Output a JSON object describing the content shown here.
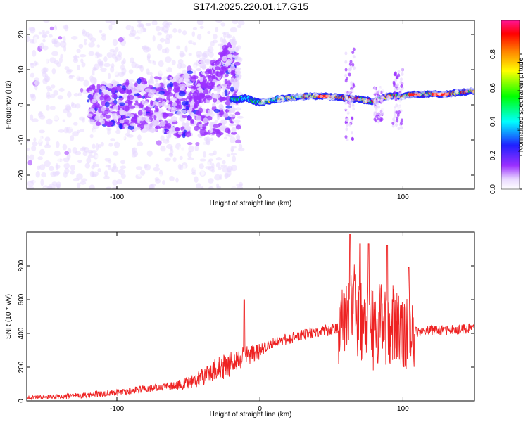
{
  "title": "S174.2025.220.01.17.G15",
  "chart_data": [
    {
      "type": "heatmap",
      "xlabel": "Height of straight line (km)",
      "ylabel": "Frequency (Hz)",
      "xlim": [
        -163,
        150
      ],
      "ylim": [
        -24,
        24
      ],
      "xticks": [
        -100,
        0,
        100
      ],
      "yticks": [
        20,
        10,
        0,
        -10,
        -20
      ],
      "colorbar": {
        "label": "Normalized spectral amplitude",
        "range": [
          0,
          1
        ],
        "ticks": [
          0.0,
          0.2,
          0.4,
          0.6,
          0.8
        ],
        "colors": [
          "#ffffff",
          "#e8d8ff",
          "#9b30ff",
          "#2020ff",
          "#00ffff",
          "#00ff00",
          "#ffff00",
          "#ff7f00",
          "#ff0000",
          "#ff1493"
        ]
      },
      "ridge": {
        "description_points_x": [
          -15,
          -10,
          0,
          10,
          20,
          40,
          60,
          70,
          80,
          90,
          100,
          110,
          120,
          130,
          150
        ],
        "frequency": [
          1.5,
          2.0,
          0.5,
          1.5,
          2.0,
          2.5,
          2.0,
          1.5,
          1.0,
          2.5,
          2.5,
          3.0,
          3.0,
          3.0,
          4.0
        ]
      }
    },
    {
      "type": "line",
      "xlabel": "Height of straight line (km)",
      "ylabel": "SNR (10 * v/v)",
      "xlim": [
        -163,
        150
      ],
      "ylim": [
        0,
        1000
      ],
      "xticks": [
        -100,
        0,
        100
      ],
      "yticks": [
        0,
        200,
        400,
        600,
        800
      ],
      "color": "#ee2222",
      "x": [
        -163,
        -140,
        -120,
        -100,
        -80,
        -60,
        -50,
        -40,
        -30,
        -20,
        -10,
        0,
        10,
        20,
        30,
        40,
        50,
        60,
        65,
        70,
        75,
        80,
        85,
        90,
        95,
        100,
        105,
        110,
        120,
        130,
        140,
        150
      ],
      "y": [
        20,
        25,
        35,
        50,
        70,
        90,
        110,
        140,
        190,
        220,
        270,
        300,
        340,
        370,
        390,
        410,
        420,
        440,
        600,
        450,
        500,
        400,
        480,
        420,
        470,
        400,
        420,
        410,
        420,
        415,
        425,
        430
      ],
      "peaks": [
        {
          "x": -11,
          "y": 600
        },
        {
          "x": 63,
          "y": 990
        },
        {
          "x": 70,
          "y": 930
        },
        {
          "x": 76,
          "y": 930
        },
        {
          "x": 89,
          "y": 920
        },
        {
          "x": 104,
          "y": 790
        }
      ]
    }
  ]
}
